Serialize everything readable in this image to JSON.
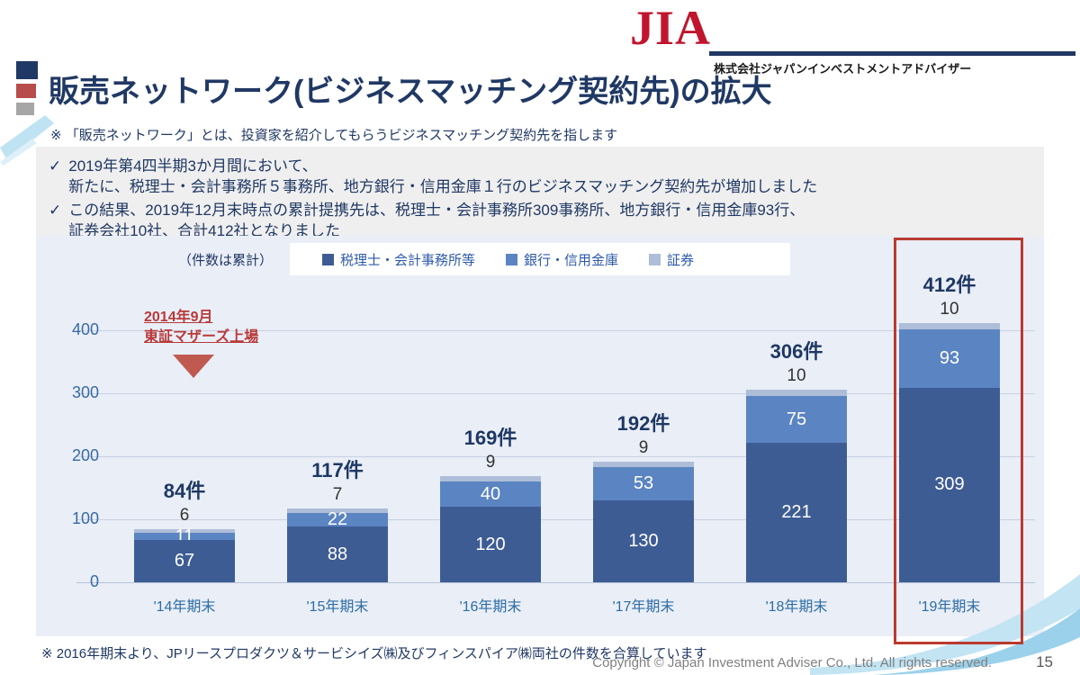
{
  "header": {
    "logo_text": "JIA",
    "company_name": "株式会社ジャパンインベストメントアドバイザー",
    "title": "販売ネットワーク(ビジネスマッチング契約先)の拡大",
    "subtitle_note": "※ 「販売ネットワーク」とは、投資家を紹介してもらうビジネスマッチング契約先を指します"
  },
  "summary": {
    "check_glyph": "✓",
    "bullets": [
      {
        "lines": [
          "2019年第4四半期3か月間において、",
          "新たに、税理士・会計事務所５事務所、地方銀行・信用金庫１行のビジネスマッチング契約先が増加しました"
        ]
      },
      {
        "lines": [
          "この結果、2019年12月末時点の累計提携先は、税理士・会計事務所309事務所、地方銀行・信用金庫93行、",
          "証券会社10社、合計412社となりました"
        ]
      }
    ]
  },
  "chart_data": {
    "type": "bar",
    "stacked": true,
    "unit_note": "（件数は累計）",
    "categories": [
      "'14年期末",
      "'15年期末",
      "'16年期末",
      "'17年期末",
      "'18年期末",
      "'19年期末"
    ],
    "series": [
      {
        "name": "税理士・会計事務所等",
        "color": "#3e5c94",
        "values": [
          67,
          88,
          120,
          130,
          221,
          309
        ]
      },
      {
        "name": "銀行・信用金庫",
        "color": "#5b84c2",
        "values": [
          11,
          22,
          40,
          53,
          75,
          93
        ]
      },
      {
        "name": "証券",
        "color": "#aebdd8",
        "values": [
          6,
          7,
          9,
          9,
          10,
          10
        ]
      }
    ],
    "totals": [
      84,
      117,
      169,
      192,
      306,
      412
    ],
    "total_suffix": "件",
    "yticks": [
      0,
      100,
      200,
      300,
      400
    ],
    "ylim": [
      0,
      430
    ],
    "grid": true,
    "legend_position": "top",
    "annotation": {
      "lines": [
        "2014年9月",
        "東証マザーズ上場"
      ]
    },
    "highlight_category_index": 5
  },
  "footnote": "※ 2016年期末より、JPリースプロダクツ＆サービシイズ㈱及びフィンスパイア㈱両社の件数を合算しています",
  "footer": {
    "copyright": "Copyright © Japan Investment Adviser Co., Ltd. All rights reserved.",
    "page_number": "15"
  }
}
